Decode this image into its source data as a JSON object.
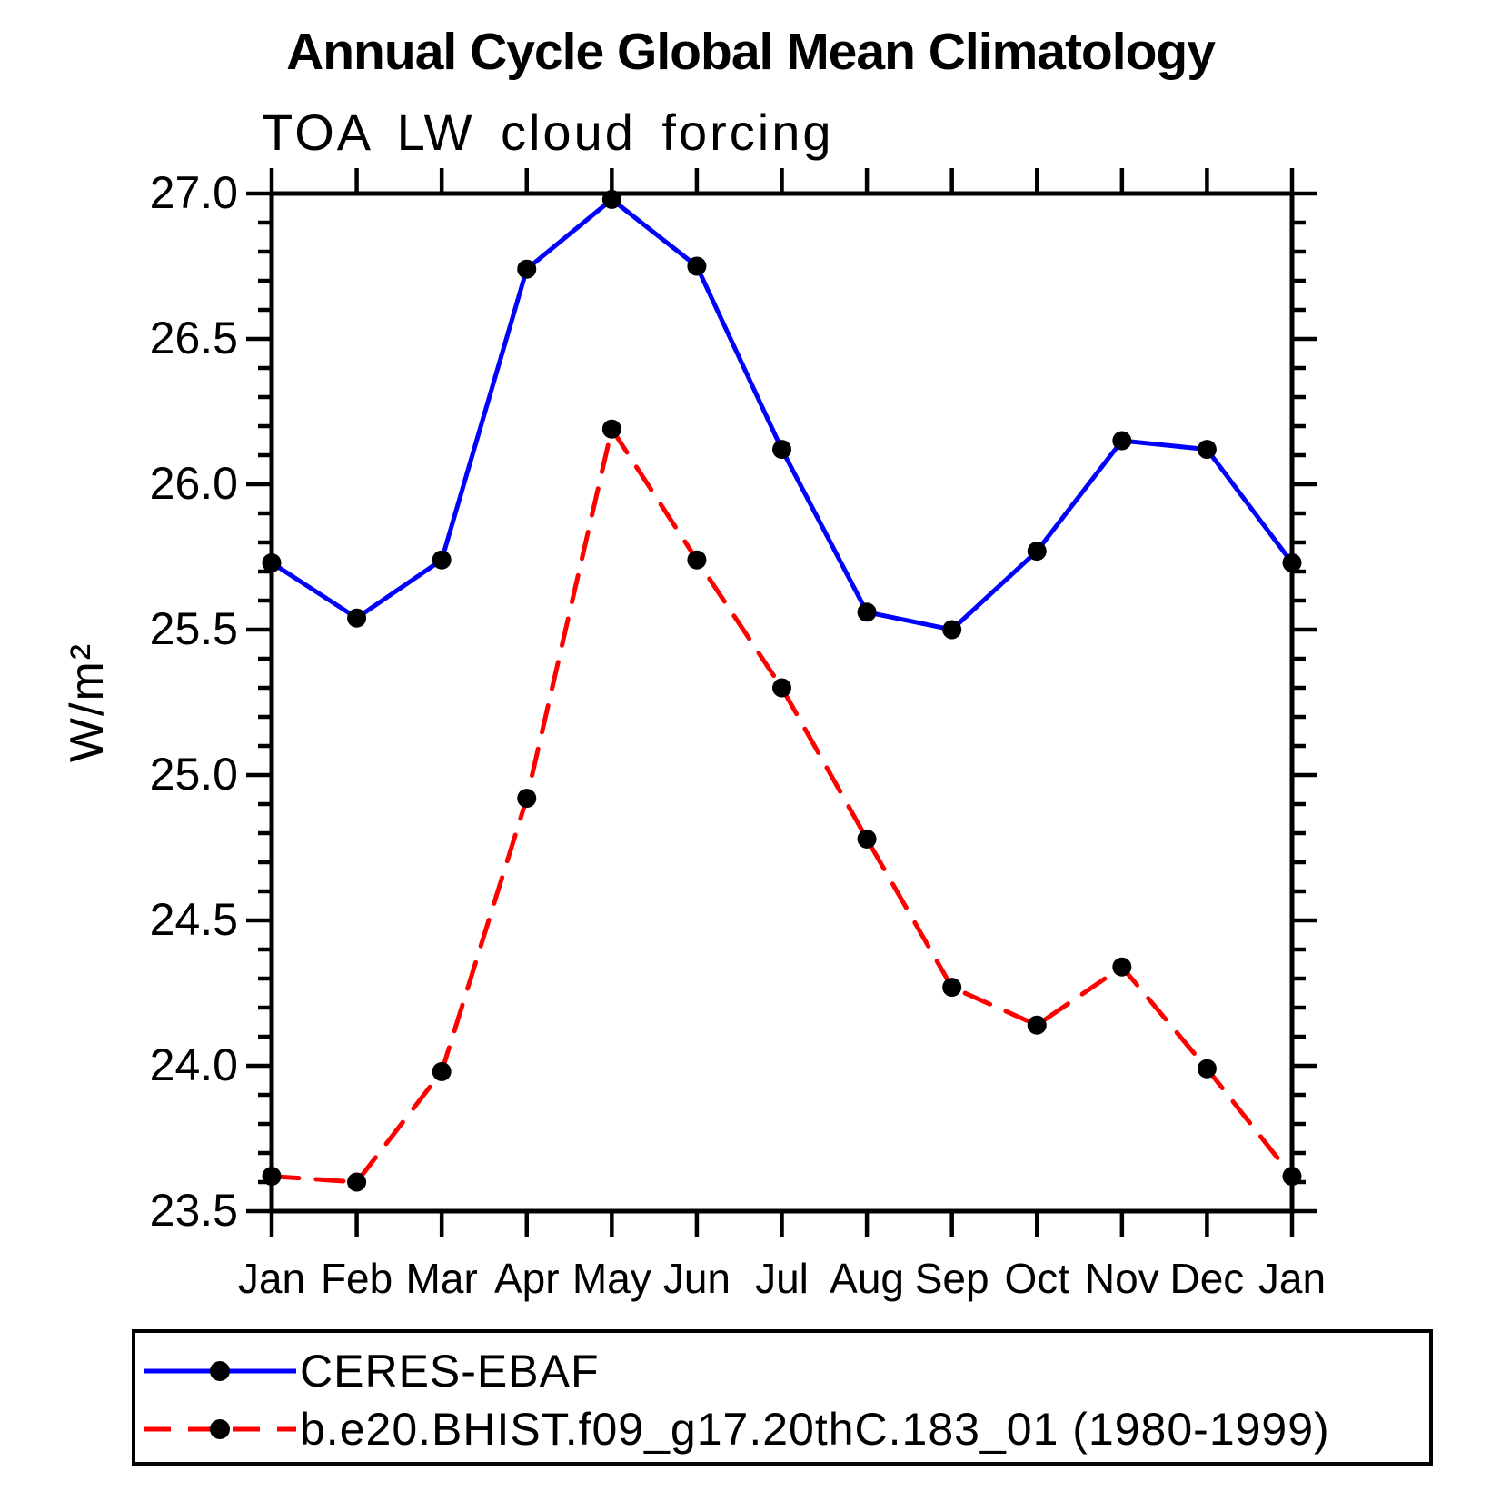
{
  "page": {
    "title": "Annual Cycle Global Mean Climatology",
    "subtitle": "TOA LW cloud forcing"
  },
  "chart_data": {
    "type": "line",
    "title": "Annual Cycle Global Mean Climatology",
    "subtitle": "TOA LW cloud forcing",
    "xlabel": "",
    "ylabel": "W/m²",
    "categories": [
      "Jan",
      "Feb",
      "Mar",
      "Apr",
      "May",
      "Jun",
      "Jul",
      "Aug",
      "Sep",
      "Oct",
      "Nov",
      "Dec",
      "Jan"
    ],
    "ylim": [
      23.5,
      27.0
    ],
    "ytick_labels": [
      "23.5",
      "24.0",
      "24.5",
      "25.0",
      "25.5",
      "26.0",
      "26.5",
      "27.0"
    ],
    "ytick_major_interval": 0.5,
    "ytick_minor_interval": 0.1,
    "grid": false,
    "legend_position": "bottom",
    "axis_color": "#000000",
    "marker_color": "#000000",
    "series": [
      {
        "name": "CERES-EBAF",
        "color": "#0000ff",
        "style": "solid",
        "marker": "circle",
        "values": [
          25.73,
          25.54,
          25.74,
          26.74,
          26.98,
          26.75,
          26.12,
          25.56,
          25.5,
          25.77,
          26.15,
          26.12,
          25.73
        ]
      },
      {
        "name": "b.e20.BHIST.f09_g17.20thC.183_01 (1980-1999)",
        "color": "#ff0000",
        "style": "dashed",
        "marker": "circle",
        "values": [
          23.62,
          23.6,
          23.98,
          24.92,
          26.19,
          25.74,
          25.3,
          24.78,
          24.27,
          24.14,
          24.34,
          23.99,
          23.62
        ]
      }
    ]
  }
}
